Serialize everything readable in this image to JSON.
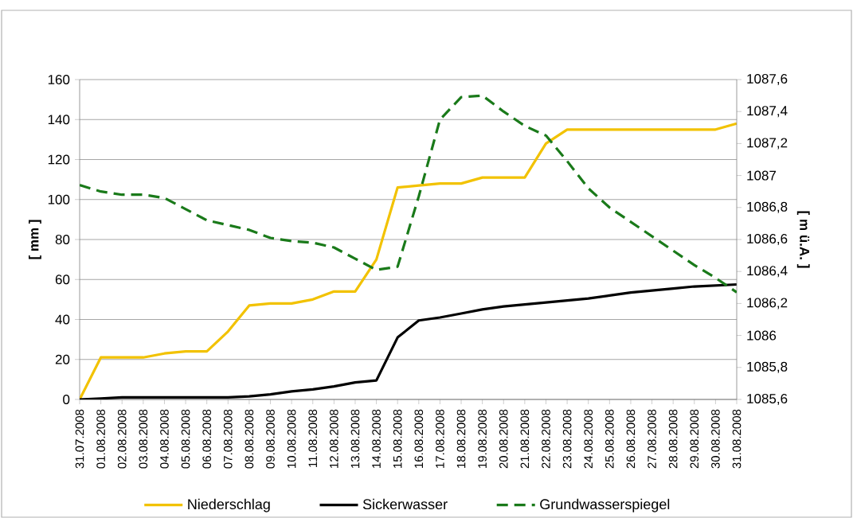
{
  "chart_data": {
    "type": "line",
    "ylabel": "[ mm ]",
    "y2label": "[ m ü.A. ]",
    "categories": [
      "31.07.2008",
      "01.08.2008",
      "02.08.2008",
      "03.08.2008",
      "04.08.2008",
      "05.08.2008",
      "06.08.2008",
      "07.08.2008",
      "08.08.2008",
      "09.08.2008",
      "10.08.2008",
      "11.08.2008",
      "12.08.2008",
      "13.08.2008",
      "14.08.2008",
      "15.08.2008",
      "16.08.2008",
      "17.08.2008",
      "18.08.2008",
      "19.08.2008",
      "20.08.2008",
      "21.08.2008",
      "22.08.2008",
      "23.08.2008",
      "24.08.2008",
      "25.08.2008",
      "26.08.2008",
      "27.08.2008",
      "28.08.2008",
      "29.08.2008",
      "30.08.2008",
      "31.08.2008"
    ],
    "series": [
      {
        "name": "Niederschlag",
        "color": "#f2c200",
        "line_style": "solid",
        "values": [
          0,
          21,
          21,
          21,
          23,
          24,
          24,
          34,
          47,
          48,
          48,
          50,
          54,
          54,
          70,
          106,
          107,
          108,
          108,
          111,
          111,
          111,
          128,
          135,
          135,
          135,
          135,
          135,
          135,
          135,
          135,
          138
        ]
      },
      {
        "name": "Sickerwasser",
        "color": "#000000",
        "line_style": "solid",
        "values": [
          0,
          0.5,
          1,
          1,
          1,
          1,
          1,
          1,
          1.5,
          2.5,
          4,
          5,
          6.5,
          8.5,
          9.5,
          31,
          39.5,
          41,
          43,
          45,
          46.5,
          47.5,
          48.5,
          49.5,
          50.5,
          52,
          53.5,
          54.5,
          55.5,
          56.5,
          57,
          57.5
        ]
      },
      {
        "name": "Grundwasserspiegel",
        "color": "#1a7a1a",
        "line_style": "dashed",
        "axis": "y2",
        "values": [
          1086.94,
          1086.9,
          1086.88,
          1086.88,
          1086.86,
          1086.79,
          1086.72,
          1086.69,
          1086.66,
          1086.61,
          1086.59,
          1086.58,
          1086.55,
          1086.48,
          1086.41,
          1086.43,
          1086.87,
          1087.35,
          1087.49,
          1087.5,
          1087.4,
          1087.31,
          1087.25,
          1087.09,
          1086.92,
          1086.8,
          1086.71,
          1086.62,
          1086.53,
          1086.44,
          1086.36,
          1086.27
        ]
      }
    ],
    "ylim": [
      0,
      160
    ],
    "yticks": [
      0,
      20,
      40,
      60,
      80,
      100,
      120,
      140,
      160
    ],
    "y2lim": [
      1085.6,
      1087.6
    ],
    "y2ticks": [
      {
        "value": 1085.6,
        "label": "1085,6"
      },
      {
        "value": 1085.8,
        "label": "1085,8"
      },
      1086,
      {
        "value": 1086.2,
        "label": "1086,2"
      },
      {
        "value": 1086.4,
        "label": "1086,4"
      },
      {
        "value": 1086.6,
        "label": "1086,6"
      },
      {
        "value": 1086.8,
        "label": "1086,8"
      },
      1087,
      {
        "value": 1087.2,
        "label": "1087,2"
      },
      {
        "value": 1087.4,
        "label": "1087,4"
      },
      {
        "value": 1087.6,
        "label": "1087,6"
      }
    ],
    "grid": "y",
    "legend": "bottom",
    "marker": "none"
  }
}
